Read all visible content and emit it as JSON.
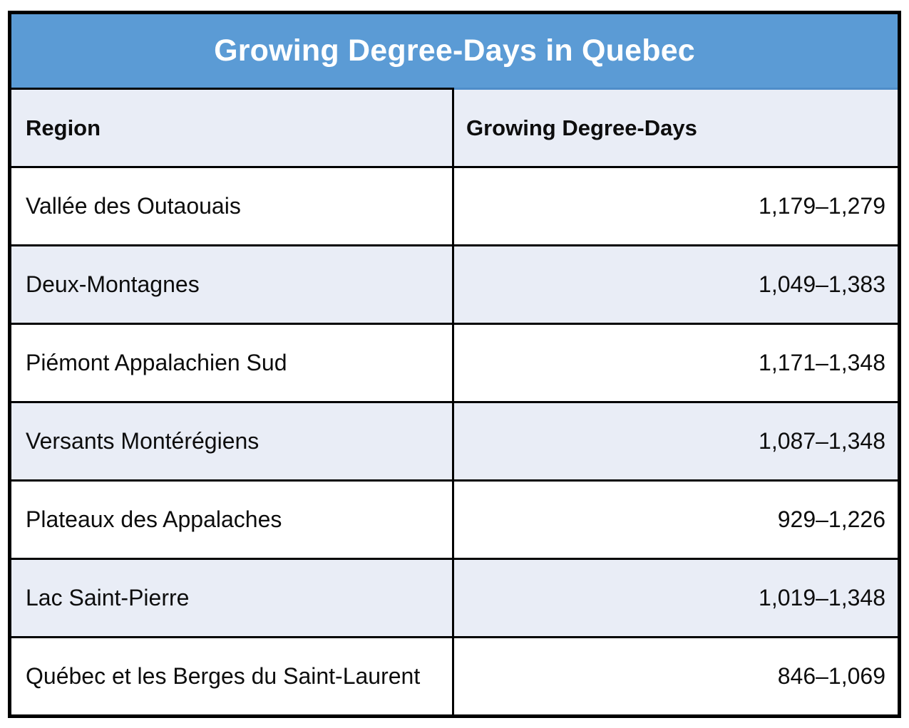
{
  "table": {
    "title": "Growing Degree-Days in Quebec",
    "columns": [
      "Region",
      "Growing Degree-Days"
    ],
    "rows": [
      {
        "region": "Vallée des Outaouais",
        "gdd": "1,179–1,279"
      },
      {
        "region": "Deux-Montagnes",
        "gdd": "1,049–1,383"
      },
      {
        "region": "Piémont Appalachien Sud",
        "gdd": "1,171–1,348"
      },
      {
        "region": "Versants Montérégiens",
        "gdd": "1,087–1,348"
      },
      {
        "region": "Plateaux des Appalaches",
        "gdd": "929–1,226"
      },
      {
        "region": "Lac Saint-Pierre",
        "gdd": "1,019–1,348"
      },
      {
        "region": "Québec et les Berges du Saint-Laurent",
        "gdd": "846–1,069"
      }
    ]
  },
  "colors": {
    "title_band": "#5B9BD5",
    "title_band_edge": "#4F8DC9",
    "row_alt": "#E9EDF6",
    "row_plain": "#FFFFFF",
    "border": "#000000",
    "title_text": "#FFFFFF",
    "body_text": "#0D0D0D"
  },
  "chart_data": {
    "type": "table",
    "title": "Growing Degree-Days in Quebec",
    "columns": [
      "Region",
      "Growing Degree-Days"
    ],
    "rows": [
      [
        "Vallée des Outaouais",
        "1,179–1,279"
      ],
      [
        "Deux-Montagnes",
        "1,049–1,383"
      ],
      [
        "Piémont Appalachien Sud",
        "1,171–1,348"
      ],
      [
        "Versants Montérégiens",
        "1,087–1,348"
      ],
      [
        "Plateaux des Appalaches",
        "929–1,226"
      ],
      [
        "Lac Saint-Pierre",
        "1,019–1,348"
      ],
      [
        "Québec et les Berges du Saint-Laurent",
        "846–1,069"
      ]
    ],
    "ranges": [
      {
        "region": "Vallée des Outaouais",
        "min": 1179,
        "max": 1279
      },
      {
        "region": "Deux-Montagnes",
        "min": 1049,
        "max": 1383
      },
      {
        "region": "Piémont Appalachien Sud",
        "min": 1171,
        "max": 1348
      },
      {
        "region": "Versants Montérégiens",
        "min": 1087,
        "max": 1348
      },
      {
        "region": "Plateaux des Appalaches",
        "min": 929,
        "max": 1226
      },
      {
        "region": "Lac Saint-Pierre",
        "min": 1019,
        "max": 1348
      },
      {
        "region": "Québec et les Berges du Saint-Laurent",
        "min": 846,
        "max": 1069
      }
    ]
  }
}
